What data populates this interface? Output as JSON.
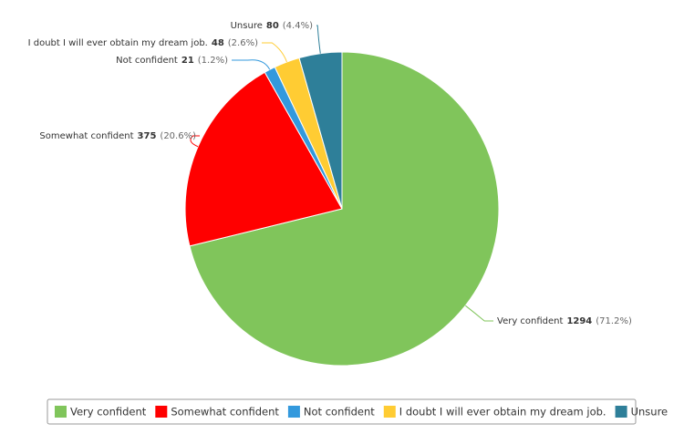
{
  "chart_data": {
    "type": "pie",
    "categories": [
      "Very confident",
      "Somewhat confident",
      "Not confident",
      "I doubt I will ever obtain my dream job.",
      "Unsure"
    ],
    "values": [
      1294,
      375,
      21,
      48,
      80
    ],
    "percent_labels": [
      "(71.2%)",
      "(20.6%)",
      "(1.2%)",
      "(2.6%)",
      "(4.4%)"
    ],
    "colors": [
      "#80c55b",
      "#ff0000",
      "#3399dd",
      "#ffcc33",
      "#2e7f99"
    ],
    "legend": "bottom"
  }
}
